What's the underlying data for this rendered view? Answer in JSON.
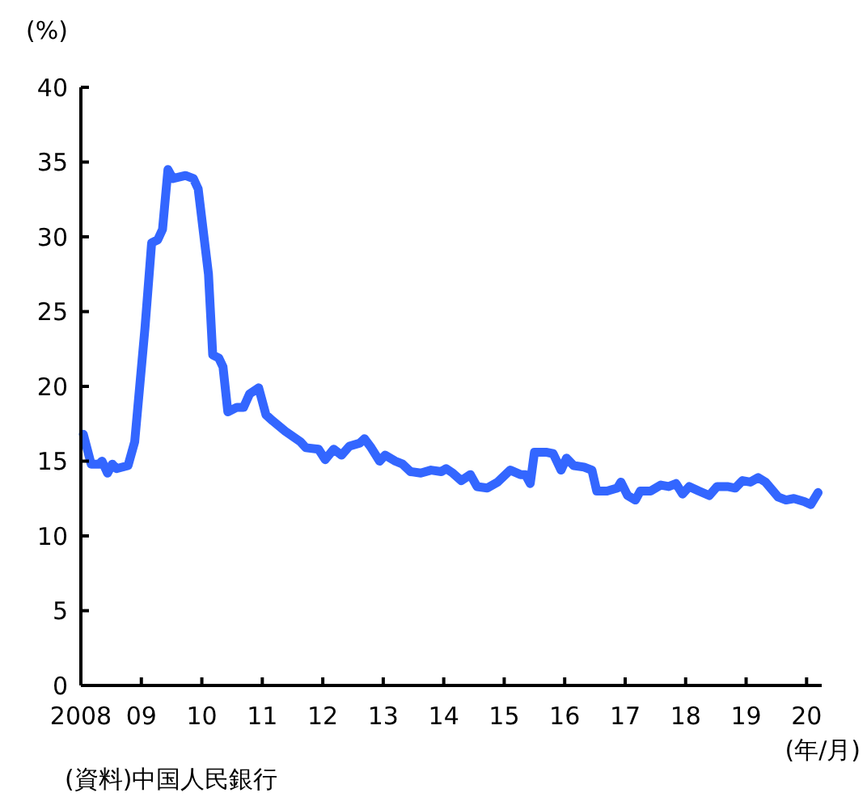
{
  "chart_data": {
    "type": "line",
    "ylabel": "(%)",
    "xlabel": "(年/月)",
    "annotations": [
      "(資料)中国人民銀行"
    ],
    "xlim": [
      2008,
      2020.25
    ],
    "ylim": [
      0,
      40
    ],
    "xticks": [
      {
        "value": 2008,
        "label": "2008"
      },
      {
        "value": 2009,
        "label": "09"
      },
      {
        "value": 2010,
        "label": "10"
      },
      {
        "value": 2011,
        "label": "11"
      },
      {
        "value": 2012,
        "label": "12"
      },
      {
        "value": 2013,
        "label": "13"
      },
      {
        "value": 2014,
        "label": "14"
      },
      {
        "value": 2015,
        "label": "15"
      },
      {
        "value": 2016,
        "label": "16"
      },
      {
        "value": 2017,
        "label": "17"
      },
      {
        "value": 2018,
        "label": "18"
      },
      {
        "value": 2019,
        "label": "19"
      },
      {
        "value": 2020,
        "label": "20"
      }
    ],
    "yticks": [
      0,
      5,
      10,
      15,
      20,
      25,
      30,
      35,
      40
    ],
    "grid": false,
    "marker": "none",
    "line_style": "solid",
    "series": [
      {
        "color": "#3366ff",
        "x": [
          2008.04,
          2008.17,
          2008.3,
          2008.35,
          2008.44,
          2008.52,
          2008.59,
          2008.78,
          2008.89,
          2009.06,
          2009.17,
          2009.27,
          2009.35,
          2009.44,
          2009.52,
          2009.73,
          2009.86,
          2009.94,
          2010.11,
          2010.18,
          2010.28,
          2010.35,
          2010.43,
          2010.58,
          2010.69,
          2010.79,
          2010.94,
          2011.06,
          2011.17,
          2011.38,
          2011.63,
          2011.72,
          2011.93,
          2012.04,
          2012.18,
          2012.31,
          2012.44,
          2012.61,
          2012.69,
          2012.8,
          2012.94,
          2013.03,
          2013.2,
          2013.32,
          2013.45,
          2013.62,
          2013.79,
          2013.96,
          2014.04,
          2014.15,
          2014.29,
          2014.44,
          2014.55,
          2014.72,
          2014.89,
          2015.1,
          2015.27,
          2015.35,
          2015.43,
          2015.5,
          2015.69,
          2015.81,
          2015.94,
          2016.03,
          2016.15,
          2016.32,
          2016.45,
          2016.53,
          2016.7,
          2016.87,
          2016.93,
          2017.04,
          2017.17,
          2017.25,
          2017.42,
          2017.59,
          2017.72,
          2017.84,
          2017.95,
          2018.06,
          2018.22,
          2018.39,
          2018.52,
          2018.69,
          2018.82,
          2018.94,
          2019.07,
          2019.2,
          2019.32,
          2019.53,
          2019.66,
          2019.79,
          2019.96,
          2020.07,
          2020.19
        ],
        "values": [
          16.8,
          14.8,
          14.8,
          15.0,
          14.2,
          14.8,
          14.5,
          14.7,
          16.3,
          23.9,
          29.6,
          29.8,
          30.5,
          34.5,
          33.9,
          34.1,
          33.9,
          33.2,
          27.5,
          22.1,
          21.9,
          21.3,
          18.3,
          18.6,
          18.6,
          19.5,
          19.9,
          18.1,
          17.7,
          17.0,
          16.3,
          15.9,
          15.8,
          15.1,
          15.8,
          15.4,
          16.0,
          16.2,
          16.5,
          15.9,
          15.0,
          15.4,
          15.0,
          14.8,
          14.3,
          14.2,
          14.4,
          14.3,
          14.5,
          14.2,
          13.7,
          14.1,
          13.3,
          13.2,
          13.6,
          14.4,
          14.1,
          14.1,
          13.5,
          15.6,
          15.6,
          15.5,
          14.4,
          15.2,
          14.7,
          14.6,
          14.4,
          13.0,
          13.0,
          13.2,
          13.6,
          12.7,
          12.4,
          13.0,
          13.0,
          13.4,
          13.3,
          13.5,
          12.8,
          13.3,
          13.0,
          12.7,
          13.3,
          13.3,
          13.2,
          13.7,
          13.6,
          13.9,
          13.6,
          12.6,
          12.4,
          12.5,
          12.3,
          12.1,
          12.9
        ]
      }
    ]
  }
}
